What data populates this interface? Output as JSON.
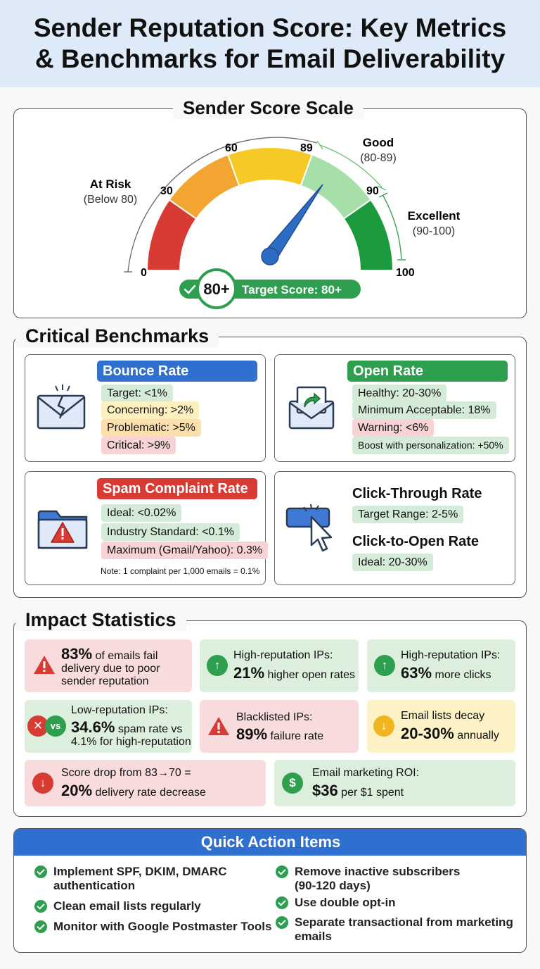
{
  "title": {
    "line1": "Sender Reputation Score: Key Metrics",
    "line2": "& Benchmarks for Email Deliverability"
  },
  "gauge": {
    "section_title": "Sender Score Scale",
    "ticks": [
      "0",
      "30",
      "60",
      "89",
      "90",
      "100"
    ],
    "value": 89,
    "zones": [
      {
        "name": "At Risk",
        "range": "(Below 80)"
      },
      {
        "name": "Good",
        "range": "(80-89)"
      },
      {
        "name": "Excellent",
        "range": "(90-100)"
      }
    ],
    "target_badge": "80+",
    "target_label": "Target Score: 80+",
    "colors": {
      "red": "#d83a34",
      "orange": "#f2a531",
      "yellow": "#f6c926",
      "lightgreen": "#a7dfa9",
      "green": "#1c9a3e",
      "needle": "#2d6cc4"
    }
  },
  "benchmarks": {
    "section_title": "Critical Benchmarks",
    "bounce": {
      "title": "Bounce Rate",
      "items": [
        "Target: <1%",
        "Concerning: >2%",
        "Problematic: >5%",
        "Critical: >9%"
      ]
    },
    "open": {
      "title": "Open Rate",
      "items": [
        "Healthy: 20-30%",
        "Minimum Acceptable: 18%",
        "Warning: <6%",
        "Boost with personalization: +50%"
      ]
    },
    "spam": {
      "title": "Spam Complaint Rate",
      "items": [
        "Ideal: <0.02%",
        "Industry Standard: <0.1%",
        "Maximum (Gmail/Yahoo): 0.3%"
      ],
      "note": "Note: 1 complaint per 1,000 emails = 0.1%"
    },
    "ctr": {
      "title": "Click-Through Rate",
      "item": "Target Range: 2-5%",
      "title2": "Click-to-Open Rate",
      "item2": "Ideal: 20-30%"
    }
  },
  "impact": {
    "section_title": "Impact Statistics",
    "s1": {
      "big": "83%",
      "text1": " of emails fail",
      "text2": "delivery due to poor",
      "text3": "sender reputation"
    },
    "s2": {
      "label": "High-reputation IPs:",
      "big": "21%",
      "text": " higher open rates"
    },
    "s3": {
      "label": "High-reputation IPs:",
      "big": "63%",
      "text": " more clicks"
    },
    "s4": {
      "label": "Low-reputation IPs:",
      "big": "34.6%",
      "text": " spam rate vs",
      "text2": "4.1% for high-reputation",
      "vs": "vs"
    },
    "s5": {
      "label": "Blacklisted IPs:",
      "big": "89%",
      "text": " failure rate"
    },
    "s6": {
      "label": "Email lists decay",
      "big": "20-30%",
      "text": " annually"
    },
    "s7": {
      "label": "Score drop from 83→70 =",
      "big": "20%",
      "text": " delivery rate decrease"
    },
    "s8": {
      "label": "Email marketing ROI:",
      "big": "$36",
      "text": " per $1 spent",
      "symbol": "$"
    }
  },
  "actions": {
    "section_title": "Quick Action Items",
    "left": [
      {
        "l1": "Implement SPF, DKIM, DMARC",
        "l2": "authentication"
      },
      {
        "l1": "Clean email lists regularly"
      },
      {
        "l1": "Monitor with Google Postmaster Tools"
      }
    ],
    "right": [
      {
        "l1": "Remove inactive subscribers",
        "l2": "(90-120 days)"
      },
      {
        "l1": "Use double opt-in"
      },
      {
        "l1": "Separate transactional from marketing",
        "l2": "emails"
      }
    ]
  }
}
